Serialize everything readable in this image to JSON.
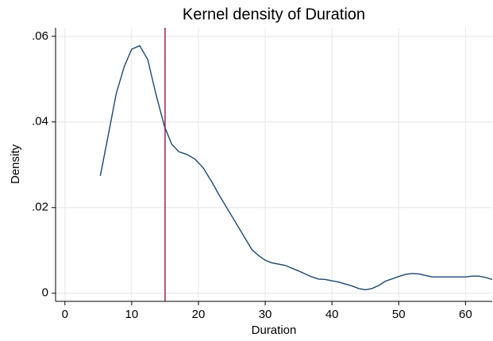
{
  "chart_data": {
    "type": "line",
    "title": "Kernel density of Duration",
    "x_label": "Duration",
    "y_label": "Density",
    "x": [
      5.3,
      6.5,
      7.7,
      8.9,
      10,
      11.2,
      12.4,
      13.6,
      14.9,
      16,
      17.1,
      18.3,
      19.5,
      20.7,
      22,
      23,
      25,
      27,
      28,
      29,
      30,
      31,
      33,
      35,
      37,
      38,
      39,
      41,
      43,
      44,
      45,
      46,
      47,
      48,
      50,
      51,
      52,
      53,
      55,
      60,
      61,
      62,
      63,
      64
    ],
    "series": [
      {
        "name": "Density",
        "color": "#1a476f",
        "values": [
          0.0274,
          0.037,
          0.0467,
          0.053,
          0.057,
          0.0578,
          0.0546,
          0.0467,
          0.039,
          0.0348,
          0.033,
          0.0324,
          0.0313,
          0.0293,
          0.026,
          0.0232,
          0.018,
          0.0128,
          0.0102,
          0.0088,
          0.0077,
          0.0071,
          0.0065,
          0.0052,
          0.0038,
          0.0033,
          0.0032,
          0.0026,
          0.0017,
          0.0011,
          0.0008,
          0.0011,
          0.0018,
          0.0028,
          0.0039,
          0.0044,
          0.0046,
          0.0045,
          0.0038,
          0.0038,
          0.004,
          0.004,
          0.0037,
          0.0032
        ]
      }
    ],
    "xline": 15,
    "xline_color": "#90134d",
    "xlim": [
      -1.4,
      64
    ],
    "ylim": [
      -0.0019,
      0.062
    ],
    "xticks": [
      0,
      10,
      20,
      30,
      40,
      50,
      60
    ],
    "yticks": [
      0,
      {
        "value": 0.02,
        "label": ".02"
      },
      {
        "value": 0.04,
        "label": ".04"
      },
      {
        "value": 0.06,
        "label": ".06"
      }
    ],
    "grid": true
  }
}
